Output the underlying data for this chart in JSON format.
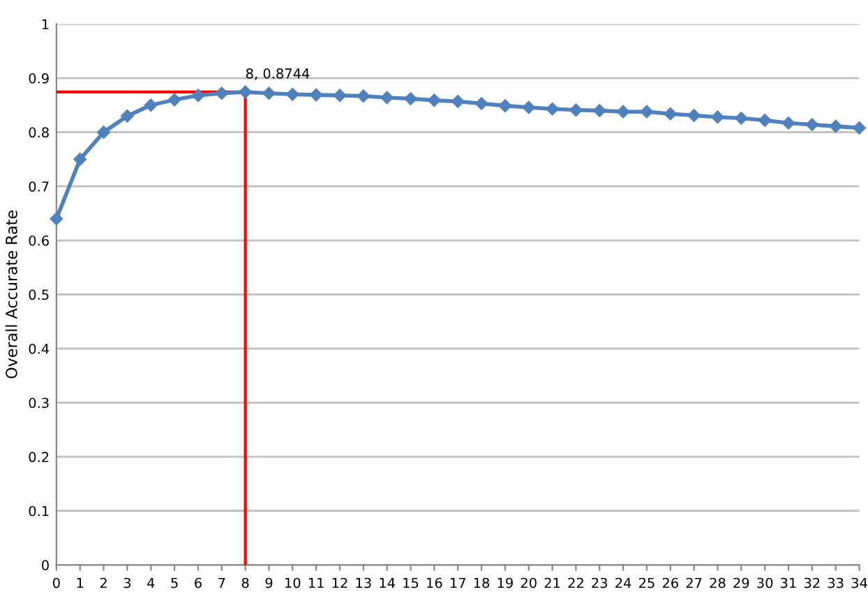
{
  "chart_data": {
    "type": "line",
    "ylabel": "Overall Accurate Rate",
    "x": [
      0,
      1,
      2,
      3,
      4,
      5,
      6,
      7,
      8,
      9,
      10,
      11,
      12,
      13,
      14,
      15,
      16,
      17,
      18,
      19,
      20,
      21,
      22,
      23,
      24,
      25,
      26,
      27,
      28,
      29,
      30,
      31,
      32,
      33,
      34
    ],
    "series": [
      {
        "color": "#4f81bd",
        "values": [
          0.64,
          0.75,
          0.8,
          0.83,
          0.85,
          0.86,
          0.868,
          0.872,
          0.8744,
          0.872,
          0.87,
          0.869,
          0.868,
          0.867,
          0.864,
          0.862,
          0.859,
          0.857,
          0.853,
          0.849,
          0.846,
          0.843,
          0.841,
          0.84,
          0.838,
          0.838,
          0.834,
          0.831,
          0.828,
          0.826,
          0.822,
          0.817,
          0.814,
          0.811,
          0.808
        ]
      }
    ],
    "marker": "diamond",
    "line_style": "solid",
    "xlim": [
      0,
      34
    ],
    "xticks": [
      0,
      1,
      2,
      3,
      4,
      5,
      6,
      7,
      8,
      9,
      10,
      11,
      12,
      13,
      14,
      15,
      16,
      17,
      18,
      19,
      20,
      21,
      22,
      23,
      24,
      25,
      26,
      27,
      28,
      29,
      30,
      31,
      32,
      33,
      34
    ],
    "ylim": [
      0,
      1
    ],
    "yticks": [
      0,
      0.1,
      0.2,
      0.3,
      0.4,
      0.5,
      0.6,
      0.7,
      0.8,
      0.9,
      1
    ],
    "grid": "y",
    "ref_lines": [
      {
        "axis": "x",
        "value": 8,
        "color": "#ff0000"
      },
      {
        "axis": "y",
        "value": 0.8744,
        "color": "#ff0000"
      }
    ],
    "annotations": [
      {
        "text": "8, 0.8744",
        "x": 8,
        "y": 0.8744
      }
    ]
  }
}
